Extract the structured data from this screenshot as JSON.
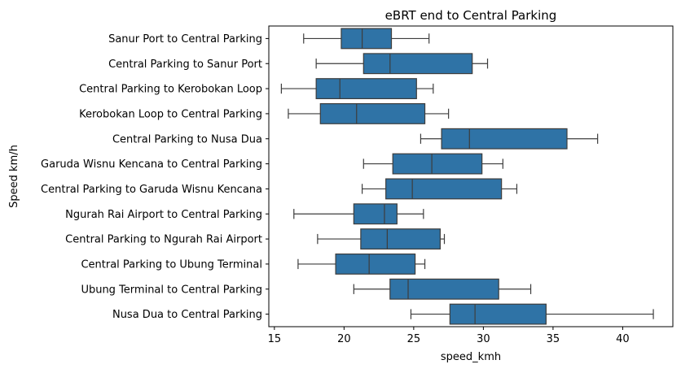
{
  "chart_data": {
    "type": "box",
    "orientation": "horizontal",
    "title": "eBRT end to Central Parking",
    "xlabel": "speed_kmh",
    "ylabel": "Speed km/h",
    "xlim": [
      14.6,
      43.6
    ],
    "xticks": [
      15,
      20,
      25,
      30,
      35,
      40
    ],
    "grid": false,
    "colors": {
      "box": "#2f73a6",
      "line": "#3d3d3d"
    },
    "categories": [
      {
        "label": "Sanur Port to Central Parking",
        "whisker_low": 17.1,
        "q1": 19.8,
        "median": 21.3,
        "q3": 23.4,
        "whisker_high": 26.1
      },
      {
        "label": "Central Parking to Sanur Port",
        "whisker_low": 18.0,
        "q1": 21.4,
        "median": 23.3,
        "q3": 29.2,
        "whisker_high": 30.3
      },
      {
        "label": "Central Parking to Kerobokan Loop",
        "whisker_low": 15.5,
        "q1": 18.0,
        "median": 19.7,
        "q3": 25.2,
        "whisker_high": 26.4
      },
      {
        "label": "Kerobokan Loop to Central Parking",
        "whisker_low": 16.0,
        "q1": 18.3,
        "median": 20.9,
        "q3": 25.8,
        "whisker_high": 27.5
      },
      {
        "label": "Central Parking to Nusa Dua",
        "whisker_low": 25.5,
        "q1": 27.0,
        "median": 29.0,
        "q3": 36.0,
        "whisker_high": 38.2
      },
      {
        "label": "Garuda Wisnu Kencana to Central Parking",
        "whisker_low": 21.4,
        "q1": 23.5,
        "median": 26.3,
        "q3": 29.9,
        "whisker_high": 31.4
      },
      {
        "label": "Central Parking to Garuda Wisnu Kencana",
        "whisker_low": 21.3,
        "q1": 23.0,
        "median": 24.9,
        "q3": 31.3,
        "whisker_high": 32.4
      },
      {
        "label": "Ngurah Rai Airport to Central Parking",
        "whisker_low": 16.4,
        "q1": 20.7,
        "median": 22.9,
        "q3": 23.8,
        "whisker_high": 25.7
      },
      {
        "label": "Central Parking to Ngurah Rai Airport",
        "whisker_low": 18.1,
        "q1": 21.2,
        "median": 23.1,
        "q3": 26.9,
        "whisker_high": 27.2
      },
      {
        "label": "Central Parking to Ubung Terminal",
        "whisker_low": 16.7,
        "q1": 19.4,
        "median": 21.8,
        "q3": 25.1,
        "whisker_high": 25.8
      },
      {
        "label": "Ubung Terminal to Central Parking",
        "whisker_low": 20.7,
        "q1": 23.3,
        "median": 24.6,
        "q3": 31.1,
        "whisker_high": 33.4
      },
      {
        "label": "Nusa Dua to Central Parking",
        "whisker_low": 24.8,
        "q1": 27.6,
        "median": 29.4,
        "q3": 34.5,
        "whisker_high": 42.2
      }
    ]
  }
}
